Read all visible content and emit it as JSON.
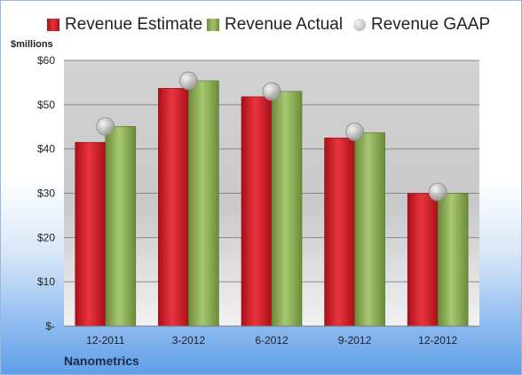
{
  "unit_label": "$millions",
  "company": "Nanometrics",
  "colors": {
    "estimate": "#d81e2a",
    "actual": "#8eb158",
    "gaap": "#b8b8b8"
  },
  "chart_data": {
    "type": "bar",
    "categories": [
      "12-2011",
      "3-2012",
      "6-2012",
      "9-2012",
      "12-2012"
    ],
    "series": [
      {
        "name": "Revenue Estimate",
        "values": [
          41.5,
          53.7,
          51.8,
          42.5,
          30.0
        ]
      },
      {
        "name": "Revenue Actual",
        "values": [
          45.1,
          55.4,
          53.0,
          43.7,
          30.0
        ]
      },
      {
        "name": "Revenue GAAP",
        "values": [
          45.1,
          55.4,
          53.0,
          43.9,
          30.3
        ]
      }
    ],
    "ylim": [
      0,
      60
    ],
    "yticks": [
      0,
      10,
      20,
      30,
      40,
      50,
      60
    ],
    "ytick_labels": [
      "$-",
      "$10",
      "$20",
      "$30",
      "$40",
      "$50",
      "$60"
    ],
    "grid": true,
    "legend_position": "top"
  }
}
